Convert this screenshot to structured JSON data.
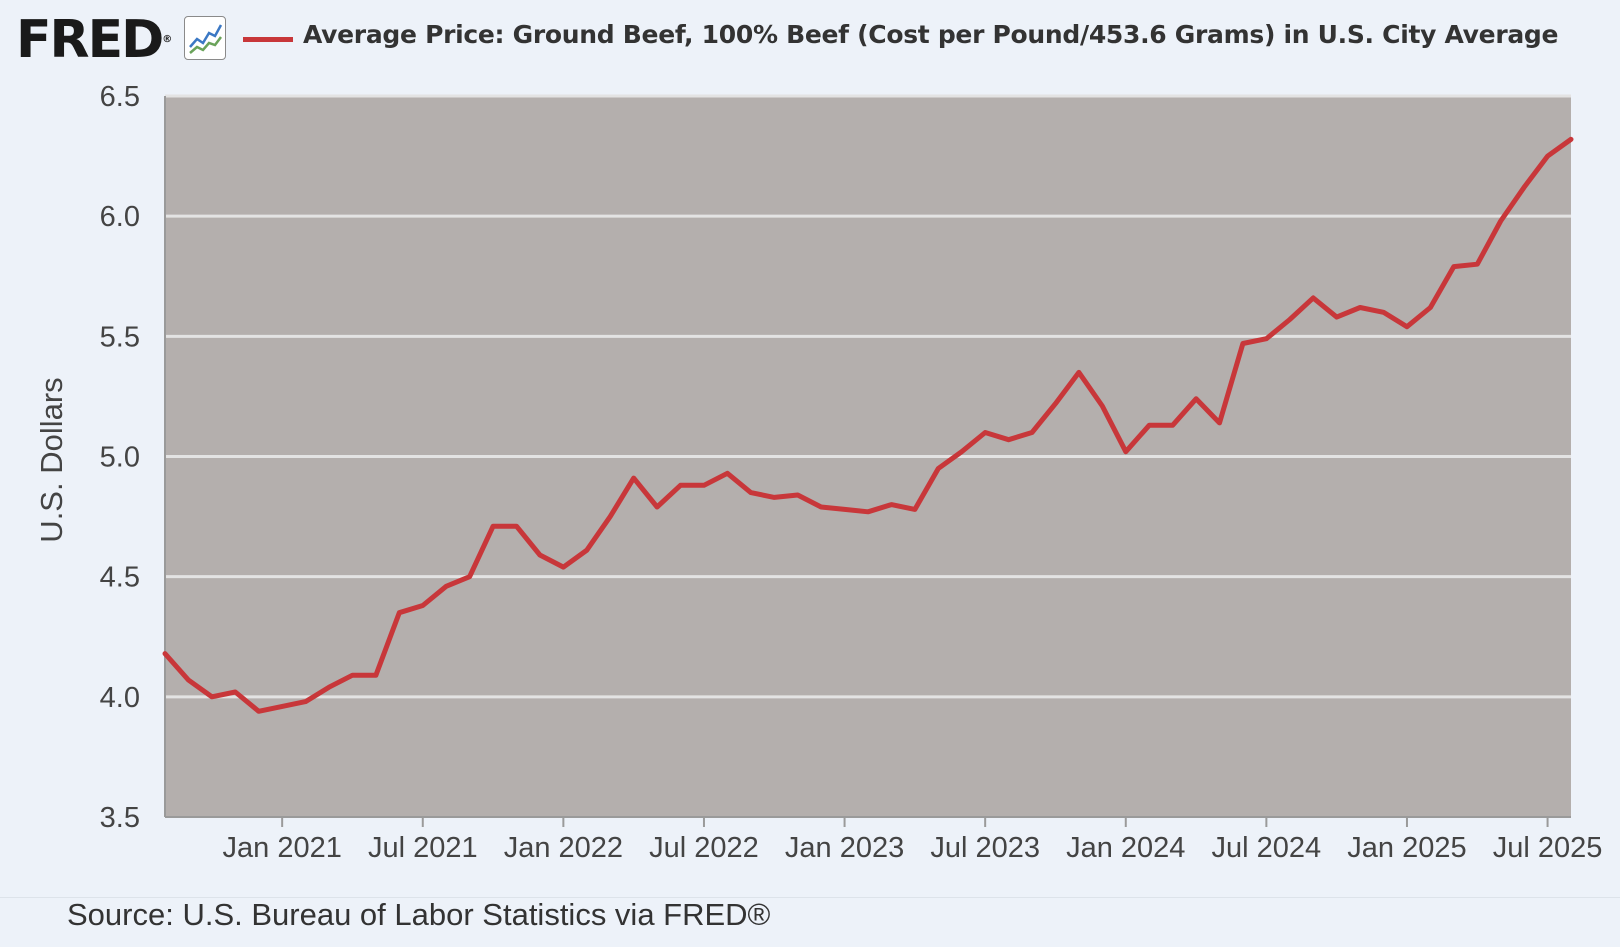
{
  "header": {
    "logo_text": "FRED",
    "logo_mark": "®",
    "graph_icon": "line-graph-icon",
    "series_color": "#c8373a",
    "legend_label": "Average Price: Ground Beef, 100% Beef (Cost per Pound/453.6 Grams) in U.S. City Average"
  },
  "source": "Source: U.S. Bureau of Labor Statistics via FRED®",
  "chart_data": {
    "type": "line",
    "title": "Average Price: Ground Beef, 100% Beef (Cost per Pound/453.6 Grams) in U.S. City Average",
    "ylabel": "U.S. Dollars",
    "xlabel": "",
    "ylim": [
      3.5,
      6.5
    ],
    "yticks": [
      "3.5",
      "4.0",
      "4.5",
      "5.0",
      "5.5",
      "6.0",
      "6.5"
    ],
    "x_start": "2020-08",
    "x_end": "2025-08",
    "xticks": [
      {
        "label": "Jan 2021",
        "date": "2021-01"
      },
      {
        "label": "Jul 2021",
        "date": "2021-07"
      },
      {
        "label": "Jan 2022",
        "date": "2022-01"
      },
      {
        "label": "Jul 2022",
        "date": "2022-07"
      },
      {
        "label": "Jan 2023",
        "date": "2023-01"
      },
      {
        "label": "Jul 2023",
        "date": "2023-07"
      },
      {
        "label": "Jan 2024",
        "date": "2024-01"
      },
      {
        "label": "Jul 2024",
        "date": "2024-07"
      },
      {
        "label": "Jan 2025",
        "date": "2025-01"
      },
      {
        "label": "Jul 2025",
        "date": "2025-07"
      }
    ],
    "grid": true,
    "series": [
      {
        "name": "Average Price: Ground Beef, 100% Beef",
        "color": "#c8373a",
        "x": [
          "2020-08",
          "2020-09",
          "2020-10",
          "2020-11",
          "2020-12",
          "2021-01",
          "2021-02",
          "2021-03",
          "2021-04",
          "2021-05",
          "2021-06",
          "2021-07",
          "2021-08",
          "2021-09",
          "2021-10",
          "2021-11",
          "2021-12",
          "2022-01",
          "2022-02",
          "2022-03",
          "2022-04",
          "2022-05",
          "2022-06",
          "2022-07",
          "2022-08",
          "2022-09",
          "2022-10",
          "2022-11",
          "2022-12",
          "2023-01",
          "2023-02",
          "2023-03",
          "2023-04",
          "2023-05",
          "2023-06",
          "2023-07",
          "2023-08",
          "2023-09",
          "2023-10",
          "2023-11",
          "2023-12",
          "2024-01",
          "2024-02",
          "2024-03",
          "2024-04",
          "2024-05",
          "2024-06",
          "2024-07",
          "2024-08",
          "2024-09",
          "2024-10",
          "2024-11",
          "2024-12",
          "2025-01",
          "2025-02",
          "2025-03",
          "2025-04",
          "2025-05",
          "2025-06",
          "2025-07",
          "2025-08"
        ],
        "values": [
          4.18,
          4.07,
          4.0,
          4.02,
          3.94,
          3.96,
          3.98,
          4.04,
          4.09,
          4.09,
          4.35,
          4.38,
          4.46,
          4.5,
          4.71,
          4.71,
          4.59,
          4.54,
          4.61,
          4.75,
          4.91,
          4.79,
          4.88,
          4.88,
          4.93,
          4.85,
          4.83,
          4.84,
          4.79,
          4.78,
          4.77,
          4.8,
          4.78,
          4.95,
          5.02,
          5.1,
          5.07,
          5.1,
          5.22,
          5.35,
          5.21,
          5.02,
          5.13,
          5.13,
          5.24,
          5.14,
          5.47,
          5.49,
          5.57,
          5.66,
          5.58,
          5.62,
          5.6,
          5.54,
          5.62,
          5.79,
          5.8,
          5.98,
          6.12,
          6.25,
          6.32
        ]
      }
    ]
  }
}
